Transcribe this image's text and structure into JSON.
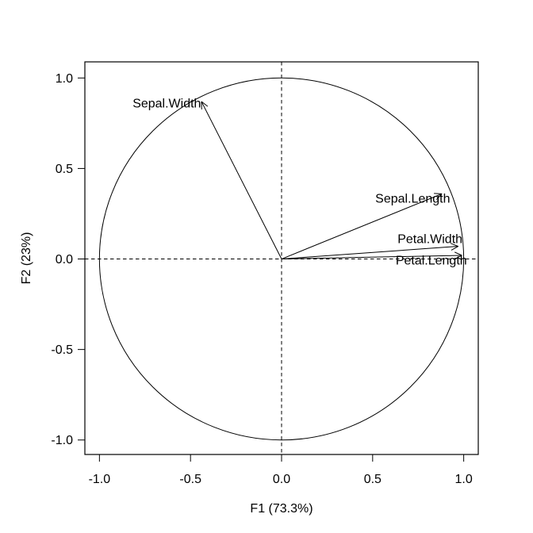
{
  "figure": {
    "background": "#ffffff",
    "line_color": "#000000",
    "text_color": "#000000"
  },
  "chart_data": {
    "type": "scatter",
    "subtype": "pca-correlation-circle",
    "title": "",
    "xlabel": "F1 (73.3%)",
    "ylabel": "F2 (23%)",
    "xlim": [
      -1.08,
      1.08
    ],
    "ylim": [
      -1.08,
      1.089
    ],
    "xticks": [
      "-1.0",
      "-0.5",
      "0.0",
      "0.5",
      "1.0"
    ],
    "xtick_values": [
      -1.0,
      -0.5,
      0.0,
      0.5,
      1.0
    ],
    "yticks": [
      "-1.0",
      "-0.5",
      "0.0",
      "0.5",
      "1.0"
    ],
    "ytick_values": [
      -1.0,
      -0.5,
      0.0,
      0.5,
      1.0
    ],
    "grid": false,
    "legend_position": "none",
    "unit_circle": {
      "cx": 0,
      "cy": 0,
      "radius": 1.0
    },
    "zero_lines": {
      "horizontal": 0,
      "vertical": 0,
      "style": "dashed"
    },
    "arrows": [
      {
        "name": "Sepal.Width",
        "x": -0.44,
        "y": 0.87,
        "label_x": -0.63,
        "label_y": 0.861
      },
      {
        "name": "Sepal.Length",
        "x": 0.88,
        "y": 0.36,
        "label_x": 0.72,
        "label_y": 0.336
      },
      {
        "name": "Petal.Width",
        "x": 0.97,
        "y": 0.07,
        "label_x": 0.815,
        "label_y": 0.112
      },
      {
        "name": "Petal.Length",
        "x": 0.99,
        "y": 0.02,
        "label_x": 0.822,
        "label_y": -0.007
      }
    ]
  }
}
